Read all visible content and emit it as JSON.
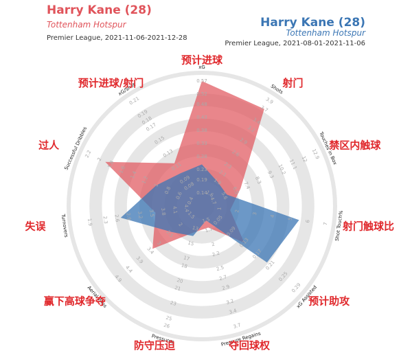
{
  "chart_data": {
    "type": "radar",
    "series": [
      {
        "name": "Harry Kane (28)",
        "team": "Tottenham Hotspur",
        "period": "Premier League, 2021-11-06-2021-12-28",
        "color": "#e0535a",
        "values": [
          0.57,
          3.7,
          6.9,
          1.6,
          0.13,
          1.65,
          13.5,
          3.3,
          3.6,
          1.9,
          0.115
        ]
      },
      {
        "name": "Harry Kane (28)",
        "team": "Tottenham Hotspur",
        "period": "Premier League, 2021-08-01-2021-11-06",
        "color": "#3b76b4",
        "values": [
          0.25,
          1.9,
          5.8,
          5.5,
          0.2,
          1.5,
          14,
          2.4,
          2.7,
          1.0,
          0.1
        ]
      }
    ],
    "axes": [
      {
        "name": "xG",
        "label": "预计进球",
        "range": [
          0.09,
          0.57
        ],
        "ticks": [
          0.14,
          0.19,
          0.23,
          0.28,
          0.33,
          0.38,
          0.43,
          0.48,
          0.52,
          0.57
        ]
      },
      {
        "name": "Shots",
        "label": "射门",
        "range": [
          1.3,
          3.9
        ],
        "ticks": [
          1.6,
          1.9,
          2.1,
          2.3,
          2.6,
          2.9,
          3.2,
          3.4,
          3.7,
          3.9
        ]
      },
      {
        "name": "Touches in Box",
        "label": "禁区内触球",
        "range": [
          3.8,
          12.9
        ],
        "ticks": [
          4.7,
          5.6,
          6.5,
          7.4,
          8.3,
          9.3,
          10.2,
          11.1,
          12.0,
          12.9
        ]
      },
      {
        "name": "Shot Touch%",
        "label": "射门触球比",
        "range": [
          0,
          7
        ],
        "ticks": [
          1,
          2,
          3,
          4,
          5,
          6,
          7
        ]
      },
      {
        "name": "xG Assisted",
        "label": "预计助攻",
        "range": [
          0,
          0.29
        ],
        "ticks": [
          0.05,
          0.09,
          0.13,
          0.17,
          0.21,
          0.25,
          0.29
        ]
      },
      {
        "name": "Pressure Regains",
        "label": "夺回球权",
        "range": [
          1.2,
          3.7
        ],
        "ticks": [
          1.5,
          1.7,
          2.0,
          2.2,
          2.5,
          2.7,
          2.9,
          3.2,
          3.4,
          3.7
        ]
      },
      {
        "name": "Pressures",
        "label": "防守压迫",
        "range": [
          10,
          26
        ],
        "ticks": [
          13,
          15,
          17,
          18,
          20,
          21,
          23,
          25,
          26
        ]
      },
      {
        "name": "Aerial Wins",
        "label": "赢下高球争夺",
        "range": [
          1.0,
          5.4
        ],
        "ticks": [
          1.5,
          2.0,
          2.5,
          3.0,
          3.4,
          3.9,
          4.4,
          4.9
        ]
      },
      {
        "name": "Turnovers",
        "label": "失误",
        "range": [
          4.8,
          1.6
        ],
        "ticks": [
          4.4,
          4.1,
          3.8,
          3.5,
          3.2,
          2.9,
          2.6,
          2.3,
          1.9
        ]
      },
      {
        "name": "Successful Dribbles",
        "label": "过人",
        "range": [
          0.2,
          2.2
        ],
        "ticks": [
          0.4,
          0.6,
          0.8,
          1.0,
          1.2,
          1.4,
          1.6,
          1.8,
          2.0,
          2.2
        ]
      },
      {
        "name": "xG/Shot",
        "label": "预计进球/射门",
        "range": [
          0.05,
          0.21
        ],
        "ticks": [
          0.08,
          0.09,
          0.11,
          0.13,
          0.15,
          0.17,
          0.18,
          0.19,
          0.21
        ]
      }
    ]
  }
}
